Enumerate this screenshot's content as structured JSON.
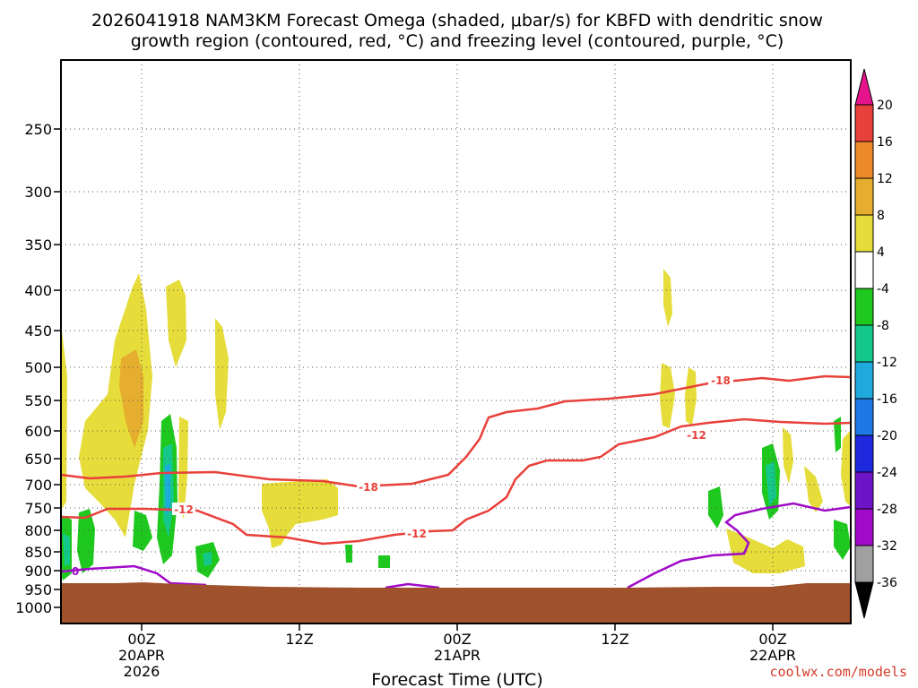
{
  "chart_data": {
    "type": "contour-time-height",
    "title_line1": "2026041918 NAM3KM Forecast Omega (shaded, μbar/s) for KBFD with dendritic snow",
    "title_line2": "growth region (contoured, red, °C) and freezing level (contoured, purple, °C)",
    "xlabel": "Forecast Time (UTC)",
    "ylabel": "",
    "x_ticks": [
      {
        "label": "00Z",
        "sub1": "20APR",
        "sub2": "2026"
      },
      {
        "label": "12Z",
        "sub1": "",
        "sub2": ""
      },
      {
        "label": "00Z",
        "sub1": "21APR",
        "sub2": ""
      },
      {
        "label": "12Z",
        "sub1": "",
        "sub2": ""
      },
      {
        "label": "00Z",
        "sub1": "22APR",
        "sub2": ""
      }
    ],
    "y_ticks": [
      "250",
      "300",
      "350",
      "400",
      "450",
      "500",
      "550",
      "600",
      "650",
      "700",
      "750",
      "800",
      "850",
      "900",
      "950",
      "1000"
    ],
    "colorbar": {
      "labels": [
        "20",
        "16",
        "12",
        "8",
        "4",
        "-4",
        "-8",
        "-12",
        "-16",
        "-20",
        "-24",
        "-28",
        "-32",
        "-36"
      ],
      "colors": {
        "16_20": "#e8403a",
        "12_16": "#ec8a2a",
        "8_12": "#e6ae2e",
        "4_8": "#e6dc3a",
        "m4_4": "#ffffff",
        "m8_m4": "#1ec81e",
        "m12_m8": "#14c88c",
        "m16_m12": "#1eaadc",
        "m20_m16": "#1e78e6",
        "m24_m20": "#1e28dc",
        "m28_m24": "#6e14c8",
        "m32_m28": "#a00ac8",
        "m36_m32": "#a0a0a0",
        "top_arrow": "#e6148c",
        "bottom_arrow": "#000000"
      }
    },
    "contours": {
      "dgz_red": [
        {
          "label": "-18",
          "level_c": -18
        },
        {
          "label": "-12",
          "level_c": -12
        }
      ],
      "freezing_purple": [
        {
          "label": "0",
          "level_c": 0
        }
      ]
    },
    "terrain_color": "#a0522d",
    "grid": "dotted",
    "credit": "coolwx.com/models"
  }
}
